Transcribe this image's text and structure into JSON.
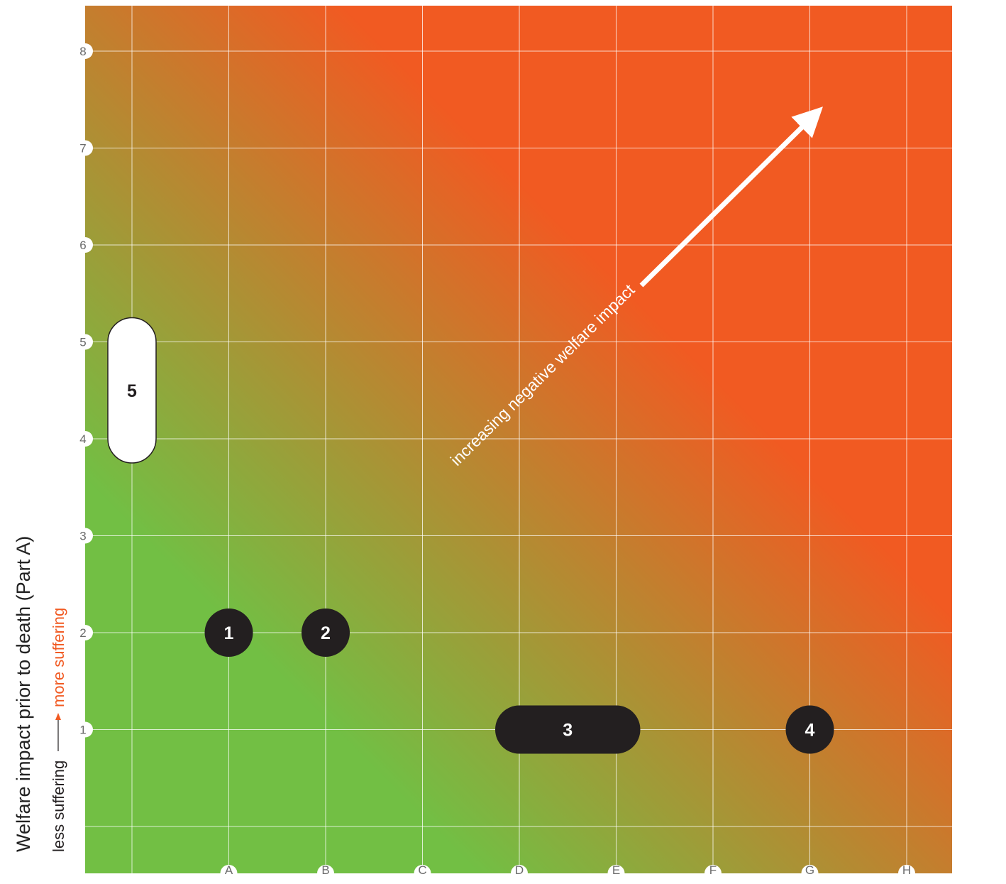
{
  "chart_data": {
    "type": "scatter",
    "title": "",
    "xlabel": "",
    "ylabel": "Welfare impact prior to death (Part A)",
    "ylabel_sub": {
      "low": "less suffering",
      "high": "more suffering"
    },
    "x_ticks": [
      "A",
      "B",
      "C",
      "D",
      "E",
      "F",
      "G",
      "H"
    ],
    "y_ticks": [
      "1",
      "2",
      "3",
      "4",
      "5",
      "6",
      "7",
      "8"
    ],
    "ylim": [
      0,
      8.5
    ],
    "grid": true,
    "background": "gradient from green (low impact, lower-left) to red-orange (high impact, upper-right)",
    "annotation": {
      "text": "increasing negative welfare impact",
      "direction": "arrow toward upper-right"
    },
    "points": [
      {
        "label": "1",
        "x": "A",
        "y": 2,
        "style": "dark"
      },
      {
        "label": "2",
        "x": "B",
        "y": 2,
        "style": "dark"
      },
      {
        "label": "3",
        "x_range": [
          "D",
          "E"
        ],
        "y": 1,
        "style": "dark"
      },
      {
        "label": "4",
        "x": "G",
        "y": 1,
        "style": "dark"
      },
      {
        "label": "5",
        "x": "before A",
        "y_range": [
          4,
          5
        ],
        "style": "light"
      }
    ]
  },
  "colors": {
    "green": "#72bf44",
    "orange": "#f15a22",
    "pill_dark": "#231f20",
    "pill_light": "#ffffff",
    "grid": "#ffffff",
    "tick_text": "#6b6b6b",
    "more_suffering": "#f15a22",
    "less_suffering": "#231f20"
  }
}
